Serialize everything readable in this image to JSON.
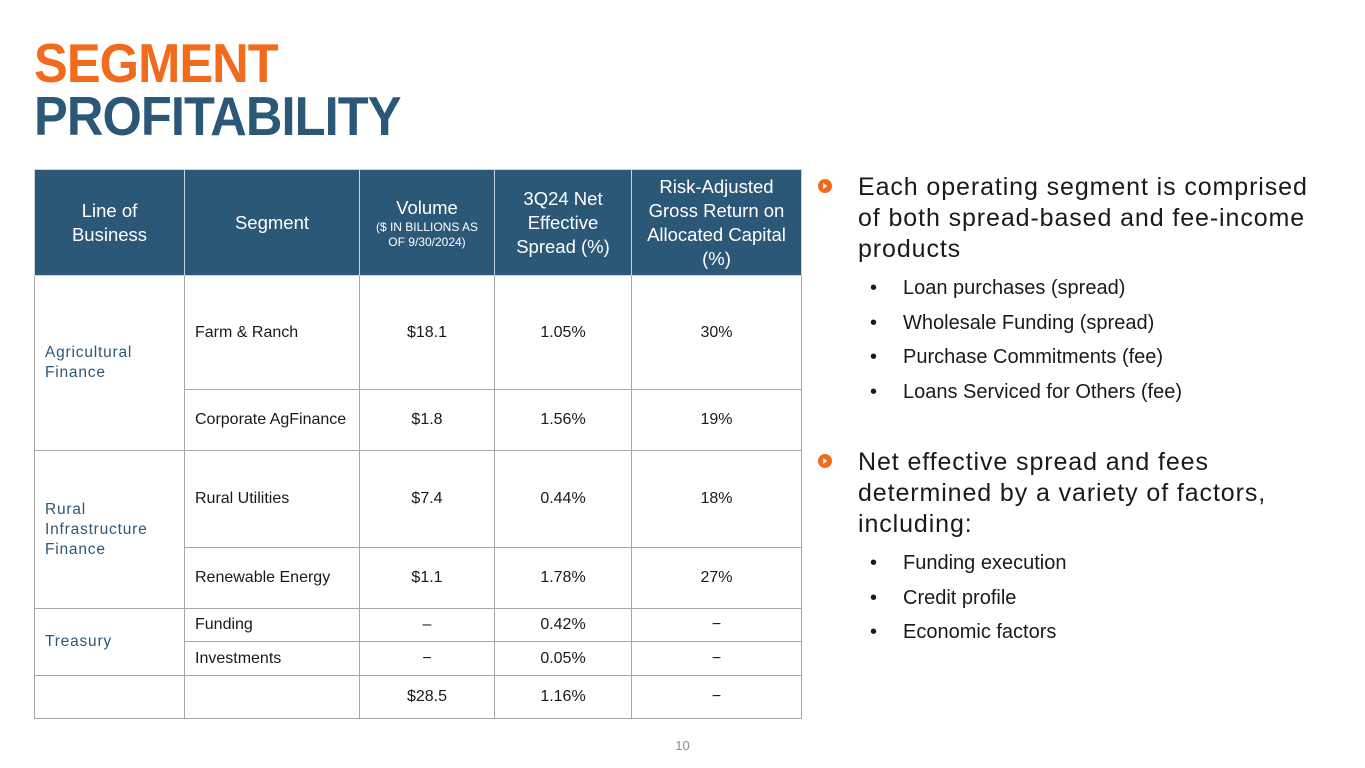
{
  "title": {
    "line1": "SEGMENT",
    "line2": "PROFITABILITY"
  },
  "colors": {
    "accent_orange": "#f26a1b",
    "brand_blue": "#2b5876",
    "header_bg": "#2c5878"
  },
  "table": {
    "headers": {
      "lob": "Line of Business",
      "segment": "Segment",
      "volume": "Volume",
      "volume_sub": "($ IN BILLIONS AS OF 9/30/2024)",
      "spread": "3Q24 Net Effective Spread (%)",
      "return": "Risk-Adjusted Gross Return on Allocated Capital (%)"
    },
    "groups": [
      {
        "lob": "Agricultural Finance"
      },
      {
        "lob": "Rural Infrastructure Finance"
      },
      {
        "lob": "Treasury"
      }
    ],
    "rows": [
      {
        "segment": "Farm & Ranch",
        "volume": "$18.1",
        "spread": "1.05%",
        "return": "30%"
      },
      {
        "segment": "Corporate AgFinance",
        "volume": "$1.8",
        "spread": "1.56%",
        "return": "19%"
      },
      {
        "segment": "Rural Utilities",
        "volume": "$7.4",
        "spread": "0.44%",
        "return": "18%"
      },
      {
        "segment": "Renewable Energy",
        "volume": "$1.1",
        "spread": "1.78%",
        "return": "27%"
      },
      {
        "segment": "Funding",
        "volume": "–",
        "spread": "0.42%",
        "return": "−"
      },
      {
        "segment": "Investments",
        "volume": "−",
        "spread": "0.05%",
        "return": "−"
      }
    ],
    "total": {
      "lob": "",
      "segment": "",
      "volume": "$28.5",
      "spread": "1.16%",
      "return": "−"
    }
  },
  "bullets": [
    {
      "text": "Each operating segment is comprised of both spread-based and fee-income products",
      "icon": "orange-circle-arrow-icon",
      "subs": [
        "Loan purchases (spread)",
        "Wholesale Funding (spread)",
        "Purchase Commitments (fee)",
        "Loans Serviced for Others (fee)"
      ]
    },
    {
      "text": "Net effective spread and fees determined by a variety of factors, including:",
      "icon": "orange-circle-arrow-icon",
      "subs": [
        "Funding execution",
        "Credit profile",
        "Economic factors"
      ]
    }
  ],
  "page_number": "10"
}
